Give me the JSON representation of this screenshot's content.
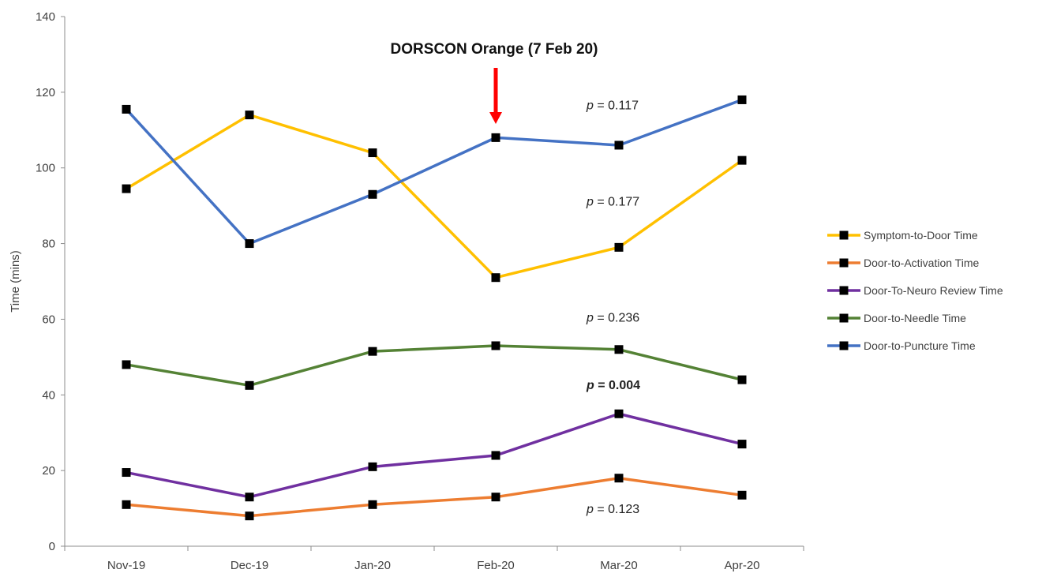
{
  "chart_data": {
    "type": "line",
    "categories": [
      "Nov-19",
      "Dec-19",
      "Jan-20",
      "Feb-20",
      "Mar-20",
      "Apr-20"
    ],
    "ylabel": "Time (mins)",
    "xlabel": "",
    "ylim": [
      0,
      140
    ],
    "yticks": [
      "0",
      "20",
      "40",
      "60",
      "80",
      "100",
      "120",
      "140"
    ],
    "grid": false,
    "legend_position": "right",
    "series": [
      {
        "name": "Symptom-to-Door Time",
        "color": "#FFC000",
        "values": [
          94.5,
          114,
          104,
          71,
          79,
          102
        ]
      },
      {
        "name": "Door-to-Activation Time",
        "color": "#ED7D31",
        "values": [
          11,
          8,
          11,
          13,
          18,
          13.5
        ]
      },
      {
        "name": "Door-To-Neuro Review Time",
        "color": "#7030A0",
        "values": [
          19.5,
          13,
          21,
          24,
          35,
          27
        ]
      },
      {
        "name": "Door-to-Needle Time",
        "color": "#548235",
        "values": [
          48,
          42.5,
          51.5,
          53,
          52,
          44
        ]
      },
      {
        "name": "Door-to-Puncture Time",
        "color": "#4472C4",
        "values": [
          115.5,
          80,
          93,
          108,
          106,
          118
        ]
      }
    ],
    "marker_color": "#000000",
    "event": {
      "label": "DORSCON Orange (7 Feb 20)",
      "category": "Feb-20",
      "arrow_color": "#FF0000"
    },
    "annotations": [
      {
        "p_label": "p",
        "text": " = 0.117",
        "bold": false
      },
      {
        "p_label": "p",
        "text": " = 0.177",
        "bold": false
      },
      {
        "p_label": "p",
        "text": " = 0.236",
        "bold": false
      },
      {
        "p_label": "p",
        "text": " = 0.004",
        "bold": true
      },
      {
        "p_label": "p",
        "text": " = 0.123",
        "bold": false
      }
    ]
  }
}
